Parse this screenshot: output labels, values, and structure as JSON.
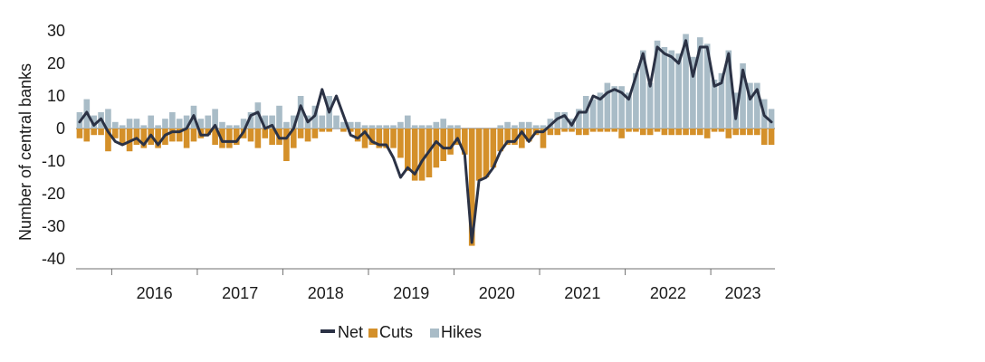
{
  "chart_data": {
    "type": "bar",
    "ylabel": "Number of central banks",
    "ylim": [
      -40,
      30
    ],
    "yticks": [
      30,
      20,
      10,
      0,
      -10,
      -20,
      -30,
      -40
    ],
    "ytick_labels": [
      "30",
      "20",
      "10",
      "0",
      "-10",
      "-20",
      "-30",
      "-40"
    ],
    "x_start": "2015-08",
    "year_labels": [
      "2016",
      "2017",
      "2018",
      "2019",
      "2020",
      "2021",
      "2022",
      "2023"
    ],
    "legend": {
      "position": "bottom",
      "items": [
        {
          "key": "net",
          "label": "Net",
          "kind": "line"
        },
        {
          "key": "cuts",
          "label": "Cuts",
          "kind": "bar"
        },
        {
          "key": "hikes",
          "label": "Hikes",
          "kind": "bar"
        }
      ]
    },
    "colors": {
      "net": "#2b3245",
      "cuts": "#d4902a",
      "hikes": "#a9bcc7"
    },
    "series": [
      {
        "name": "Hikes",
        "key": "hikes",
        "values": [
          5,
          9,
          4,
          5,
          6,
          2,
          1,
          3,
          3,
          1,
          4,
          1,
          3,
          5,
          3,
          4,
          7,
          3,
          4,
          6,
          2,
          1,
          1,
          3,
          5,
          8,
          4,
          4,
          7,
          2,
          4,
          10,
          4,
          7,
          4,
          10,
          4,
          2,
          2,
          2,
          1,
          1,
          1,
          1,
          1,
          2,
          4,
          1,
          1,
          1,
          2,
          3,
          1,
          1,
          0,
          0,
          0,
          0,
          0,
          1,
          2,
          1,
          2,
          2,
          1,
          1,
          3,
          5,
          5,
          3,
          6,
          10,
          9,
          11,
          14,
          13,
          13,
          11,
          17,
          24,
          14,
          27,
          25,
          24,
          23,
          29,
          22,
          28,
          26,
          15,
          17,
          24,
          11,
          20,
          14,
          14,
          9,
          6
        ]
      },
      {
        "name": "Cuts",
        "key": "cuts",
        "values": [
          -3,
          -4,
          -2,
          -2,
          -7,
          -3,
          -5,
          -7,
          -5,
          -6,
          -5,
          -6,
          -5,
          -4,
          -4,
          -6,
          -4,
          -3,
          -2,
          -5,
          -6,
          -6,
          -5,
          -3,
          -4,
          -6,
          -3,
          -5,
          -5,
          -10,
          -6,
          -3,
          -4,
          -3,
          -1,
          -1,
          0,
          -1,
          -1,
          -4,
          -6,
          -5,
          -6,
          -6,
          -6,
          -9,
          -13,
          -16,
          -16,
          -15,
          -12,
          -10,
          -8,
          -5,
          -8,
          -36,
          -16,
          -15,
          -12,
          -7,
          -5,
          -5,
          -6,
          -4,
          -2,
          -6,
          -2,
          -2,
          -1,
          -1,
          -2,
          -2,
          -1,
          -1,
          -1,
          -1,
          -3,
          -1,
          -1,
          -2,
          -2,
          -1,
          -2,
          -2,
          -2,
          -2,
          -2,
          -2,
          -3,
          -1,
          -1,
          -3,
          -2,
          -2,
          -2,
          -2,
          -5,
          -5
        ]
      },
      {
        "name": "Net",
        "key": "net",
        "values": [
          2,
          5,
          1,
          3,
          -1,
          -4,
          -5,
          -4,
          -3,
          -5,
          -2,
          -5,
          -2,
          -1,
          -1,
          0,
          4,
          -2,
          -2,
          1,
          -4,
          -4,
          -4,
          -1,
          4,
          5,
          0,
          1,
          -3,
          -3,
          0,
          7,
          2,
          4,
          12,
          5,
          10,
          4,
          -2,
          -3,
          -1,
          -4,
          -5,
          -5,
          -9,
          -15,
          -12,
          -14,
          -10,
          -7,
          -4,
          -6,
          -6,
          -3,
          -8,
          -35,
          -16,
          -15,
          -12,
          -7,
          -4,
          -4,
          -1,
          -4,
          -1,
          -1,
          1,
          3,
          4,
          1,
          5,
          5,
          10,
          9,
          11,
          12,
          11,
          9,
          16,
          23,
          13,
          25,
          23,
          22,
          20,
          27,
          16,
          25,
          25,
          13,
          14,
          23,
          3,
          18,
          9,
          12,
          4,
          2
        ]
      }
    ]
  }
}
